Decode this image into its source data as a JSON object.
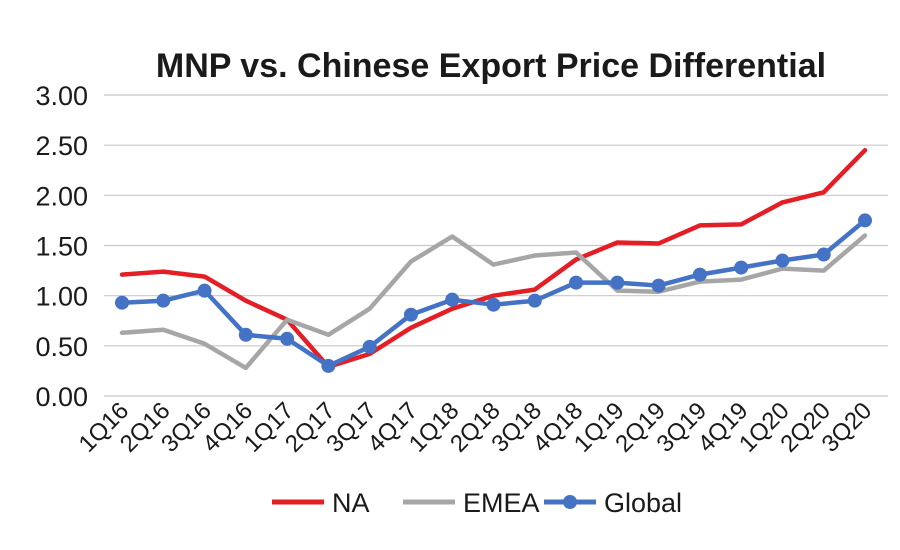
{
  "chart_data": {
    "type": "line",
    "title": "MNP vs. Chinese Export Price Differential",
    "xlabel": "",
    "ylabel": "",
    "ylim": [
      0,
      3
    ],
    "yticks": [
      "0.00",
      "0.50",
      "1.00",
      "1.50",
      "2.00",
      "2.50",
      "3.00"
    ],
    "categories": [
      "1Q16",
      "2Q16",
      "3Q16",
      "4Q16",
      "1Q17",
      "2Q17",
      "3Q17",
      "4Q17",
      "1Q18",
      "2Q18",
      "3Q18",
      "4Q18",
      "1Q19",
      "2Q19",
      "3Q19",
      "4Q19",
      "1Q20",
      "2Q20",
      "3Q20"
    ],
    "grid": true,
    "legend_position": "bottom",
    "series": [
      {
        "name": "NA",
        "color": "#e31e25",
        "marker": false,
        "values": [
          1.21,
          1.24,
          1.19,
          0.95,
          0.76,
          0.29,
          0.42,
          0.68,
          0.87,
          1.0,
          1.06,
          1.36,
          1.53,
          1.52,
          1.7,
          1.71,
          1.93,
          2.03,
          2.45
        ]
      },
      {
        "name": "EMEA",
        "color": "#a6a6a6",
        "marker": false,
        "values": [
          0.63,
          0.66,
          0.52,
          0.28,
          0.76,
          0.61,
          0.87,
          1.34,
          1.59,
          1.31,
          1.4,
          1.43,
          1.05,
          1.04,
          1.14,
          1.16,
          1.27,
          1.25,
          1.6
        ]
      },
      {
        "name": "Global",
        "color": "#4472c4",
        "marker": true,
        "values": [
          0.93,
          0.95,
          1.05,
          0.61,
          0.57,
          0.3,
          0.49,
          0.81,
          0.96,
          0.91,
          0.95,
          1.13,
          1.13,
          1.1,
          1.21,
          1.28,
          1.35,
          1.41,
          1.75
        ]
      }
    ]
  }
}
